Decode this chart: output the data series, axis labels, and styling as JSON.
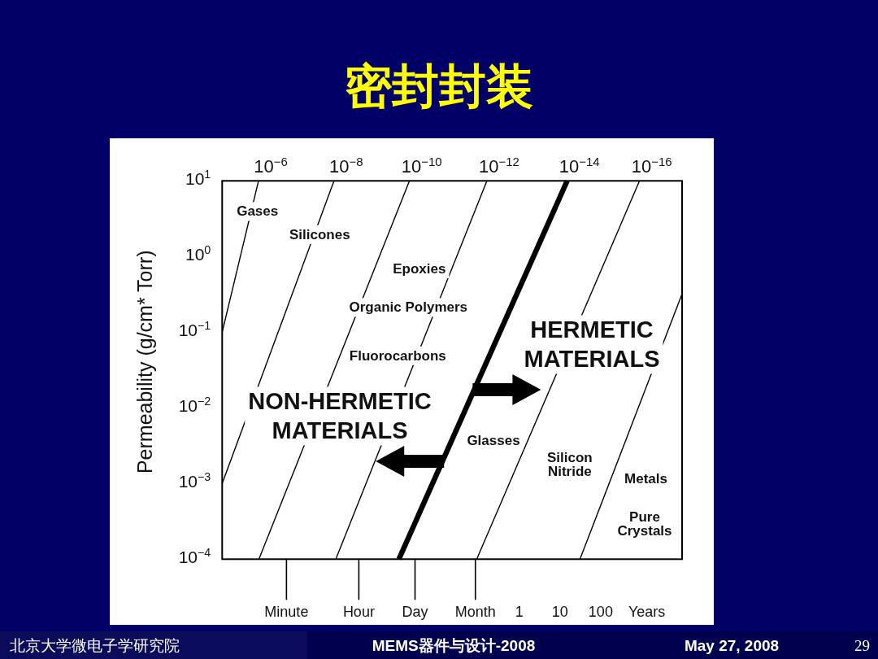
{
  "chart_data": {
    "type": "line",
    "title": "密封封装",
    "ylabel": "Permeability (g/cm* Torr)",
    "xlabel": "Years",
    "log": "xy",
    "xlim": [
      5e-08,
      10000
    ],
    "ylim": [
      0.0001,
      10
    ],
    "xticks": [
      {
        "value": 1.9e-06,
        "label": "Minute"
      },
      {
        "value": 0.000114,
        "label": "Hour"
      },
      {
        "value": 0.00274,
        "label": "Day"
      },
      {
        "value": 0.0833,
        "label": "Month"
      },
      1,
      10,
      100
    ],
    "yticks": [
      {
        "value": 0.0001,
        "label": "10$^{−4}$"
      },
      {
        "value": 0.001,
        "label": "10$^{−3}$"
      },
      {
        "value": 0.01,
        "label": "10$^{−2}$"
      },
      {
        "value": 0.1,
        "label": "10$^{−1}$"
      },
      {
        "value": 1,
        "label": "10$^{0}$"
      },
      {
        "value": 10,
        "label": "10$^{1}$"
      }
    ],
    "series": [
      {
        "name": "10$^{−6}$",
        "color": "#000000",
        "x": [
          5e-08,
          3.9e-07
        ],
        "values": [
          0.1,
          10
        ]
      },
      {
        "name": "10$^{−8}$",
        "color": "#000000",
        "x": [
          5e-08,
          2.8e-05
        ],
        "values": [
          0.001,
          10
        ]
      },
      {
        "name": "10$^{−10}$",
        "color": "#000000",
        "x": [
          4e-07,
          0.002
        ],
        "values": [
          0.0001,
          10
        ]
      },
      {
        "name": "10$^{−12}$",
        "color": "#000000",
        "x": [
          3.1e-05,
          0.16
        ],
        "values": [
          0.0001,
          10
        ]
      },
      {
        "name": "10$^{−14}$",
        "color": "#000000",
        "x": [
          0.0011,
          15
        ],
        "values": [
          0.0001,
          10
        ]
      },
      {
        "name": "10$^{−16}$",
        "color": "#000000",
        "x": [
          0.09,
          900
        ],
        "values": [
          0.0001,
          10
        ]
      },
      {
        "color": "#000000",
        "x": [
          31,
          10000
        ],
        "values": [
          0.0001,
          0.32
        ]
      }
    ],
    "annotations": [
      "Gases",
      "Silicones",
      "Epoxies",
      "Organic Polymers",
      "HERMETIC\nMATERIALS",
      "Fluorocarbons",
      "NON-HERMETIC\nMATERIALS",
      "Glasses",
      "Silicon\nNitride",
      "Metals",
      "Pure\nCrystals",
      "北京大学微电子学研究院",
      "MEMS器件与设计-2008",
      "May 27, 2008",
      "29"
    ]
  }
}
